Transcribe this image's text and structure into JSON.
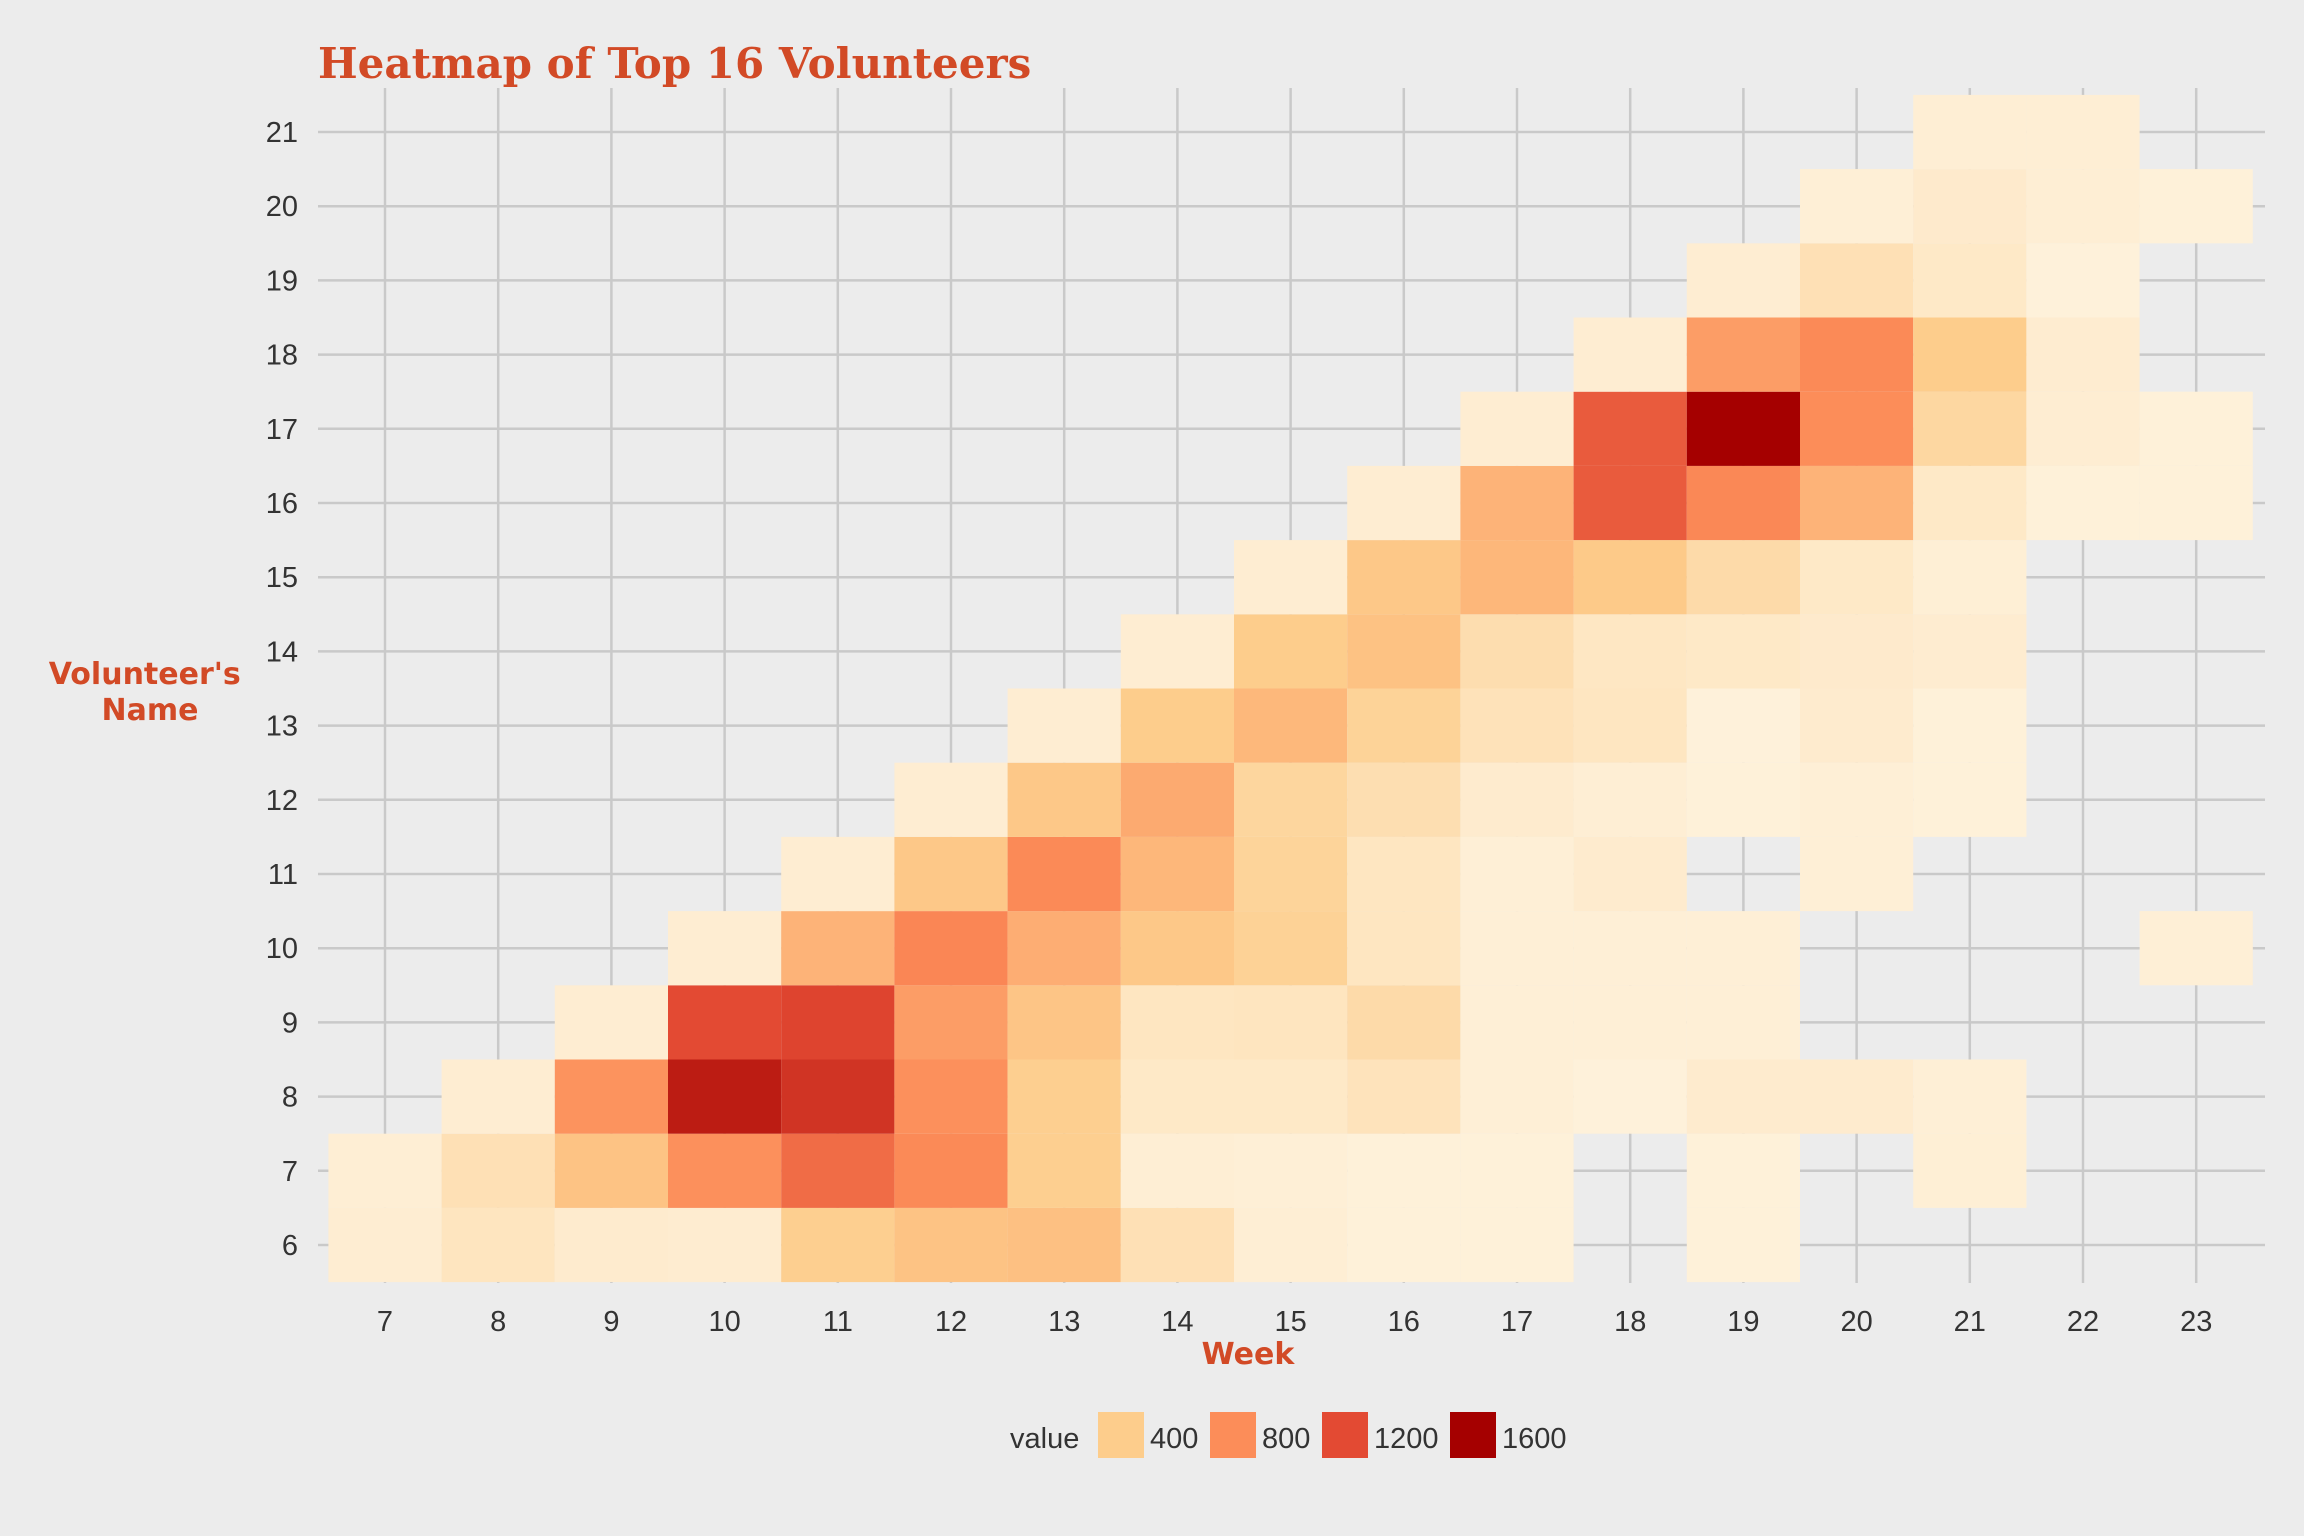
{
  "chart_data": {
    "type": "heatmap",
    "title": "Heatmap of Top 16 Volunteers",
    "xlabel": "Week",
    "ylabel": "Volunteer's\nName",
    "x_categories": [
      7,
      8,
      9,
      10,
      11,
      12,
      13,
      14,
      15,
      16,
      17,
      18,
      19,
      20,
      21,
      22,
      23
    ],
    "y_categories": [
      6,
      7,
      8,
      9,
      10,
      11,
      12,
      13,
      14,
      15,
      16,
      17,
      18,
      19,
      20,
      21
    ],
    "grid": true,
    "legend": {
      "title": "value",
      "breaks": [
        400,
        800,
        1200,
        1600
      ],
      "position": "bottom"
    },
    "colors": {
      "background": "#ececec",
      "gridline": "#c9c9c9",
      "title": "#d24a26",
      "scale": [
        "#fef3de",
        "#fdcd8c",
        "#fc8d59",
        "#e34a33",
        "#a50000"
      ]
    },
    "cells": [
      {
        "x": 7,
        "y": 6,
        "value": 60
      },
      {
        "x": 8,
        "y": 6,
        "value": 150
      },
      {
        "x": 9,
        "y": 6,
        "value": 80
      },
      {
        "x": 10,
        "y": 6,
        "value": 70
      },
      {
        "x": 11,
        "y": 6,
        "value": 380
      },
      {
        "x": 12,
        "y": 6,
        "value": 460
      },
      {
        "x": 13,
        "y": 6,
        "value": 480
      },
      {
        "x": 14,
        "y": 6,
        "value": 200
      },
      {
        "x": 15,
        "y": 6,
        "value": 50
      },
      {
        "x": 16,
        "y": 6,
        "value": 25
      },
      {
        "x": 17,
        "y": 6,
        "value": 25
      },
      {
        "x": 19,
        "y": 6,
        "value": 25
      },
      {
        "x": 7,
        "y": 7,
        "value": 50
      },
      {
        "x": 8,
        "y": 7,
        "value": 200
      },
      {
        "x": 9,
        "y": 7,
        "value": 460
      },
      {
        "x": 10,
        "y": 7,
        "value": 780
      },
      {
        "x": 11,
        "y": 7,
        "value": 1000
      },
      {
        "x": 12,
        "y": 7,
        "value": 820
      },
      {
        "x": 13,
        "y": 7,
        "value": 380
      },
      {
        "x": 14,
        "y": 7,
        "value": 50
      },
      {
        "x": 15,
        "y": 7,
        "value": 40
      },
      {
        "x": 16,
        "y": 7,
        "value": 25
      },
      {
        "x": 17,
        "y": 7,
        "value": 25
      },
      {
        "x": 19,
        "y": 7,
        "value": 25
      },
      {
        "x": 21,
        "y": 7,
        "value": 45
      },
      {
        "x": 8,
        "y": 8,
        "value": 60
      },
      {
        "x": 9,
        "y": 8,
        "value": 760
      },
      {
        "x": 10,
        "y": 8,
        "value": 1450
      },
      {
        "x": 11,
        "y": 8,
        "value": 1320
      },
      {
        "x": 12,
        "y": 8,
        "value": 780
      },
      {
        "x": 13,
        "y": 8,
        "value": 380
      },
      {
        "x": 14,
        "y": 8,
        "value": 110
      },
      {
        "x": 15,
        "y": 8,
        "value": 110
      },
      {
        "x": 16,
        "y": 8,
        "value": 170
      },
      {
        "x": 17,
        "y": 8,
        "value": 40
      },
      {
        "x": 18,
        "y": 8,
        "value": 20
      },
      {
        "x": 19,
        "y": 8,
        "value": 80
      },
      {
        "x": 20,
        "y": 8,
        "value": 80
      },
      {
        "x": 21,
        "y": 8,
        "value": 40
      },
      {
        "x": 9,
        "y": 9,
        "value": 60
      },
      {
        "x": 10,
        "y": 9,
        "value": 1200
      },
      {
        "x": 11,
        "y": 9,
        "value": 1230
      },
      {
        "x": 12,
        "y": 9,
        "value": 700
      },
      {
        "x": 13,
        "y": 9,
        "value": 450
      },
      {
        "x": 14,
        "y": 9,
        "value": 140
      },
      {
        "x": 15,
        "y": 9,
        "value": 150
      },
      {
        "x": 16,
        "y": 9,
        "value": 260
      },
      {
        "x": 17,
        "y": 9,
        "value": 40
      },
      {
        "x": 18,
        "y": 9,
        "value": 40
      },
      {
        "x": 19,
        "y": 9,
        "value": 40
      },
      {
        "x": 10,
        "y": 10,
        "value": 60
      },
      {
        "x": 11,
        "y": 10,
        "value": 560
      },
      {
        "x": 12,
        "y": 10,
        "value": 840
      },
      {
        "x": 13,
        "y": 10,
        "value": 600
      },
      {
        "x": 14,
        "y": 10,
        "value": 430
      },
      {
        "x": 15,
        "y": 10,
        "value": 350
      },
      {
        "x": 16,
        "y": 10,
        "value": 140
      },
      {
        "x": 17,
        "y": 10,
        "value": 40
      },
      {
        "x": 18,
        "y": 10,
        "value": 40
      },
      {
        "x": 19,
        "y": 10,
        "value": 40
      },
      {
        "x": 23,
        "y": 10,
        "value": 40
      },
      {
        "x": 11,
        "y": 11,
        "value": 60
      },
      {
        "x": 12,
        "y": 11,
        "value": 430
      },
      {
        "x": 13,
        "y": 11,
        "value": 820
      },
      {
        "x": 14,
        "y": 11,
        "value": 540
      },
      {
        "x": 15,
        "y": 11,
        "value": 330
      },
      {
        "x": 16,
        "y": 11,
        "value": 140
      },
      {
        "x": 17,
        "y": 11,
        "value": 40
      },
      {
        "x": 18,
        "y": 11,
        "value": 80
      },
      {
        "x": 20,
        "y": 11,
        "value": 40
      },
      {
        "x": 12,
        "y": 12,
        "value": 60
      },
      {
        "x": 13,
        "y": 12,
        "value": 430
      },
      {
        "x": 14,
        "y": 12,
        "value": 620
      },
      {
        "x": 15,
        "y": 12,
        "value": 310
      },
      {
        "x": 16,
        "y": 12,
        "value": 220
      },
      {
        "x": 17,
        "y": 12,
        "value": 80
      },
      {
        "x": 18,
        "y": 12,
        "value": 50
      },
      {
        "x": 19,
        "y": 12,
        "value": 25
      },
      {
        "x": 20,
        "y": 12,
        "value": 40
      },
      {
        "x": 21,
        "y": 12,
        "value": 25
      },
      {
        "x": 13,
        "y": 13,
        "value": 60
      },
      {
        "x": 14,
        "y": 13,
        "value": 400
      },
      {
        "x": 15,
        "y": 13,
        "value": 530
      },
      {
        "x": 16,
        "y": 13,
        "value": 340
      },
      {
        "x": 17,
        "y": 13,
        "value": 180
      },
      {
        "x": 18,
        "y": 13,
        "value": 140
      },
      {
        "x": 19,
        "y": 13,
        "value": 20
      },
      {
        "x": 20,
        "y": 13,
        "value": 80
      },
      {
        "x": 21,
        "y": 13,
        "value": 25
      },
      {
        "x": 14,
        "y": 14,
        "value": 60
      },
      {
        "x": 15,
        "y": 14,
        "value": 400
      },
      {
        "x": 16,
        "y": 14,
        "value": 470
      },
      {
        "x": 17,
        "y": 14,
        "value": 230
      },
      {
        "x": 18,
        "y": 14,
        "value": 130
      },
      {
        "x": 19,
        "y": 14,
        "value": 110
      },
      {
        "x": 20,
        "y": 14,
        "value": 90
      },
      {
        "x": 21,
        "y": 14,
        "value": 70
      },
      {
        "x": 15,
        "y": 15,
        "value": 60
      },
      {
        "x": 16,
        "y": 15,
        "value": 430
      },
      {
        "x": 17,
        "y": 15,
        "value": 540
      },
      {
        "x": 18,
        "y": 15,
        "value": 420
      },
      {
        "x": 19,
        "y": 15,
        "value": 260
      },
      {
        "x": 20,
        "y": 15,
        "value": 110
      },
      {
        "x": 21,
        "y": 15,
        "value": 45
      },
      {
        "x": 16,
        "y": 16,
        "value": 60
      },
      {
        "x": 17,
        "y": 16,
        "value": 560
      },
      {
        "x": 18,
        "y": 16,
        "value": 1100
      },
      {
        "x": 19,
        "y": 16,
        "value": 830
      },
      {
        "x": 20,
        "y": 16,
        "value": 560
      },
      {
        "x": 21,
        "y": 16,
        "value": 110
      },
      {
        "x": 22,
        "y": 16,
        "value": 25
      },
      {
        "x": 23,
        "y": 16,
        "value": 25
      },
      {
        "x": 17,
        "y": 17,
        "value": 60
      },
      {
        "x": 18,
        "y": 17,
        "value": 1100
      },
      {
        "x": 19,
        "y": 17,
        "value": 1600
      },
      {
        "x": 20,
        "y": 17,
        "value": 800
      },
      {
        "x": 21,
        "y": 17,
        "value": 300
      },
      {
        "x": 22,
        "y": 17,
        "value": 60
      },
      {
        "x": 23,
        "y": 17,
        "value": 25
      },
      {
        "x": 18,
        "y": 18,
        "value": 60
      },
      {
        "x": 19,
        "y": 18,
        "value": 700
      },
      {
        "x": 20,
        "y": 18,
        "value": 820
      },
      {
        "x": 21,
        "y": 18,
        "value": 400
      },
      {
        "x": 22,
        "y": 18,
        "value": 70
      },
      {
        "x": 19,
        "y": 19,
        "value": 60
      },
      {
        "x": 20,
        "y": 19,
        "value": 200
      },
      {
        "x": 21,
        "y": 19,
        "value": 110
      },
      {
        "x": 22,
        "y": 19,
        "value": 20
      },
      {
        "x": 20,
        "y": 20,
        "value": 40
      },
      {
        "x": 21,
        "y": 20,
        "value": 90
      },
      {
        "x": 22,
        "y": 20,
        "value": 50
      },
      {
        "x": 23,
        "y": 20,
        "value": 25
      },
      {
        "x": 21,
        "y": 21,
        "value": 50
      },
      {
        "x": 22,
        "y": 21,
        "value": 50
      }
    ]
  }
}
